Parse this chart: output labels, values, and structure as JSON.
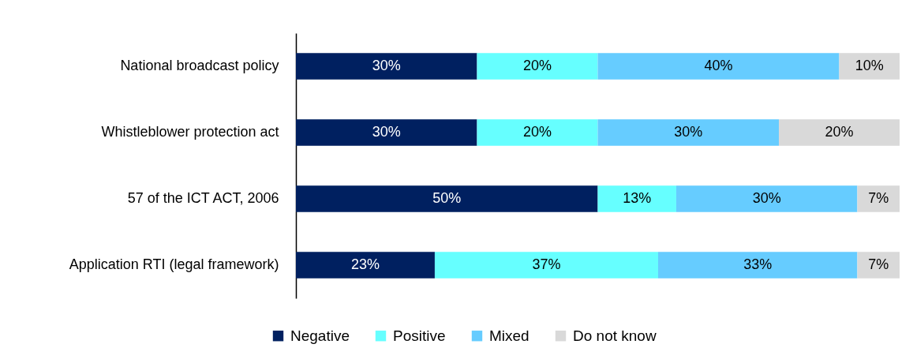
{
  "chart_data": {
    "type": "bar",
    "orientation": "horizontal",
    "stacked": true,
    "legend": "bottom",
    "tick_labels": "y",
    "xlim": [
      0,
      100
    ],
    "categories": [
      "National broadcast policy",
      "Whistleblower protection act",
      "57 of the ICT ACT, 2006",
      "Application RTI (legal framework)"
    ],
    "series": [
      {
        "name": "Negative",
        "color": "#002060",
        "values": [
          30,
          30,
          50,
          23
        ],
        "value_labels": [
          "30%",
          "30%",
          "50%",
          "23%"
        ]
      },
      {
        "name": "Positive",
        "color": "#66ffff",
        "values": [
          20,
          20,
          13,
          37
        ],
        "value_labels": [
          "20%",
          "20%",
          "13%",
          "37%"
        ]
      },
      {
        "name": "Mixed",
        "color": "#66ccff",
        "values": [
          40,
          30,
          30,
          33
        ],
        "value_labels": [
          "40%",
          "30%",
          "30%",
          "33%"
        ]
      },
      {
        "name": "Do not know",
        "color": "#d9d9d9",
        "values": [
          10,
          20,
          7,
          7
        ],
        "value_labels": [
          "10%",
          "20%",
          "7%",
          "7%"
        ]
      }
    ]
  }
}
